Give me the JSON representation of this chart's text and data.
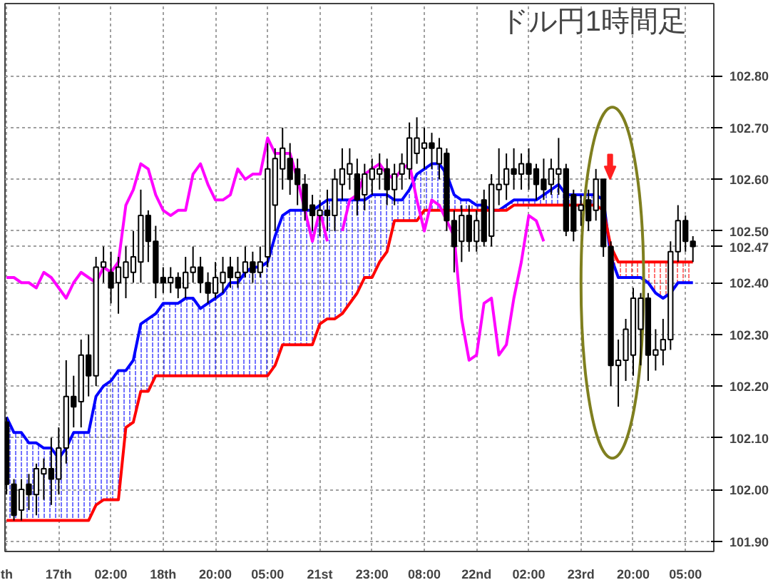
{
  "chart_data": {
    "type": "candlestick",
    "annotations": [
      "ドル円1時間足"
    ],
    "categories": [
      "th",
      null,
      null,
      null,
      null,
      null,
      null,
      "17th",
      null,
      null,
      null,
      null,
      null,
      null,
      "02:00",
      null,
      null,
      null,
      null,
      null,
      null,
      "18th",
      null,
      null,
      null,
      null,
      null,
      null,
      "20:00",
      null,
      null,
      null,
      null,
      null,
      null,
      "05:00",
      null,
      null,
      null,
      null,
      null,
      null,
      "21st",
      null,
      null,
      null,
      null,
      null,
      null,
      "23:00",
      null,
      null,
      null,
      null,
      null,
      null,
      "08:00",
      null,
      null,
      null,
      null,
      null,
      null,
      "22nd",
      null,
      null,
      null,
      null,
      null,
      null,
      "02:00",
      null,
      null,
      null,
      null,
      null,
      null,
      "23rd",
      null,
      null,
      null,
      null,
      null,
      null,
      "20:00",
      null,
      null,
      null,
      null,
      null,
      null,
      "05:00",
      null
    ],
    "color": "#000000",
    "ohlc": [
      [
        102.13,
        102.14,
        101.99,
        102.01
      ],
      [
        102.01,
        102.02,
        101.94,
        101.95
      ],
      [
        101.96,
        102.02,
        101.94,
        102.0
      ],
      [
        102.01,
        102.03,
        101.96,
        101.99
      ],
      [
        101.99,
        102.05,
        101.95,
        102.04
      ],
      [
        102.03,
        102.06,
        101.98,
        102.04
      ],
      [
        102.04,
        102.1,
        101.97,
        102.02
      ],
      [
        102.02,
        102.12,
        101.99,
        102.08
      ],
      [
        102.08,
        102.25,
        102.05,
        102.18
      ],
      [
        102.18,
        102.22,
        102.12,
        102.16
      ],
      [
        102.17,
        102.29,
        102.12,
        102.26
      ],
      [
        102.26,
        102.3,
        102.18,
        102.22
      ],
      [
        102.22,
        102.45,
        102.2,
        102.43
      ],
      [
        102.43,
        102.47,
        102.4,
        102.44
      ],
      [
        102.42,
        102.46,
        102.36,
        102.39
      ],
      [
        102.4,
        102.45,
        102.34,
        102.43
      ],
      [
        102.41,
        102.47,
        102.37,
        102.44
      ],
      [
        102.42,
        102.5,
        102.4,
        102.45
      ],
      [
        102.44,
        102.58,
        102.4,
        102.53
      ],
      [
        102.53,
        102.54,
        102.44,
        102.48
      ],
      [
        102.48,
        102.51,
        102.37,
        102.4
      ],
      [
        102.41,
        102.43,
        102.38,
        102.4
      ],
      [
        102.4,
        102.43,
        102.38,
        102.41
      ],
      [
        102.41,
        102.42,
        102.37,
        102.39
      ],
      [
        102.39,
        102.45,
        102.37,
        102.42
      ],
      [
        102.42,
        102.47,
        102.4,
        102.43
      ],
      [
        102.43,
        102.45,
        102.38,
        102.4
      ],
      [
        102.4,
        102.42,
        102.36,
        102.38
      ],
      [
        102.38,
        102.44,
        102.37,
        102.41
      ],
      [
        102.4,
        102.45,
        102.38,
        102.42
      ],
      [
        102.43,
        102.45,
        102.39,
        102.41
      ],
      [
        102.41,
        102.45,
        102.39,
        102.42
      ],
      [
        102.42,
        102.47,
        102.41,
        102.44
      ],
      [
        102.44,
        102.46,
        102.4,
        102.42
      ],
      [
        102.42,
        102.47,
        102.41,
        102.44
      ],
      [
        102.45,
        102.67,
        102.43,
        102.62
      ],
      [
        102.55,
        102.66,
        102.5,
        102.64
      ],
      [
        102.62,
        102.7,
        102.58,
        102.66
      ],
      [
        102.64,
        102.67,
        102.57,
        102.6
      ],
      [
        102.62,
        102.64,
        102.55,
        102.59
      ],
      [
        102.59,
        102.61,
        102.52,
        102.54
      ],
      [
        102.55,
        102.57,
        102.5,
        102.53
      ],
      [
        102.53,
        102.56,
        102.49,
        102.54
      ],
      [
        102.54,
        102.58,
        102.5,
        102.53
      ],
      [
        102.53,
        102.62,
        102.5,
        102.6
      ],
      [
        102.59,
        102.66,
        102.56,
        102.62
      ],
      [
        102.61,
        102.66,
        102.58,
        102.63
      ],
      [
        102.61,
        102.64,
        102.53,
        102.56
      ],
      [
        102.57,
        102.63,
        102.54,
        102.61
      ],
      [
        102.6,
        102.64,
        102.57,
        102.62
      ],
      [
        102.61,
        102.65,
        102.58,
        102.62
      ],
      [
        102.62,
        102.64,
        102.55,
        102.58
      ],
      [
        102.58,
        102.63,
        102.55,
        102.61
      ],
      [
        102.61,
        102.65,
        102.58,
        102.63
      ],
      [
        102.62,
        102.71,
        102.6,
        102.68
      ],
      [
        102.65,
        102.72,
        102.63,
        102.68
      ],
      [
        102.66,
        102.7,
        102.62,
        102.67
      ],
      [
        102.67,
        102.69,
        102.62,
        102.66
      ],
      [
        102.63,
        102.68,
        102.6,
        102.66
      ],
      [
        102.65,
        102.66,
        102.5,
        102.52
      ],
      [
        102.52,
        102.54,
        102.42,
        102.47
      ],
      [
        102.48,
        102.55,
        102.44,
        102.53
      ],
      [
        102.53,
        102.55,
        102.46,
        102.48
      ],
      [
        102.48,
        102.54,
        102.46,
        102.52
      ],
      [
        102.56,
        102.58,
        102.47,
        102.48
      ],
      [
        102.49,
        102.61,
        102.47,
        102.59
      ],
      [
        102.58,
        102.66,
        102.55,
        102.59
      ],
      [
        102.59,
        102.65,
        102.56,
        102.62
      ],
      [
        102.62,
        102.66,
        102.58,
        102.61
      ],
      [
        102.61,
        102.65,
        102.58,
        102.63
      ],
      [
        102.63,
        102.66,
        102.58,
        102.61
      ],
      [
        102.62,
        102.63,
        102.56,
        102.59
      ],
      [
        102.6,
        102.64,
        102.56,
        102.58
      ],
      [
        102.59,
        102.64,
        102.57,
        102.62
      ],
      [
        102.61,
        102.68,
        102.57,
        102.62
      ],
      [
        102.62,
        102.63,
        102.49,
        102.5
      ],
      [
        102.57,
        102.58,
        102.48,
        102.5
      ],
      [
        102.54,
        102.57,
        102.51,
        102.55
      ],
      [
        102.56,
        102.58,
        102.5,
        102.52
      ],
      [
        102.54,
        102.62,
        102.52,
        102.6
      ],
      [
        102.6,
        102.6,
        102.45,
        102.47
      ],
      [
        102.47,
        102.48,
        102.2,
        102.24
      ],
      [
        102.24,
        102.29,
        102.16,
        102.25
      ],
      [
        102.25,
        102.33,
        102.21,
        102.31
      ],
      [
        102.26,
        102.39,
        102.22,
        102.37
      ],
      [
        102.31,
        102.38,
        102.24,
        102.37
      ],
      [
        102.37,
        102.38,
        102.21,
        102.26
      ],
      [
        102.26,
        102.31,
        102.23,
        102.27
      ],
      [
        102.27,
        102.33,
        102.24,
        102.29
      ],
      [
        102.29,
        102.48,
        102.27,
        102.46
      ],
      [
        102.46,
        102.55,
        102.44,
        102.52
      ],
      [
        102.52,
        102.53,
        102.46,
        102.48
      ],
      [
        102.48,
        102.49,
        102.44,
        102.47
      ]
    ],
    "series": [
      {
        "type": "line",
        "color": "#0000ff",
        "values": [
          102.14,
          102.11,
          102.11,
          102.09,
          102.09,
          102.08,
          102.08,
          102.06,
          102.08,
          102.11,
          102.11,
          102.11,
          102.18,
          102.2,
          102.21,
          102.23,
          102.23,
          102.25,
          102.32,
          102.33,
          102.34,
          102.36,
          102.36,
          102.36,
          102.37,
          102.37,
          102.35,
          102.36,
          102.37,
          102.38,
          102.4,
          102.4,
          102.42,
          102.43,
          102.43,
          102.44,
          102.49,
          102.53,
          102.54,
          102.54,
          102.54,
          102.54,
          102.55,
          102.56,
          102.56,
          102.56,
          102.56,
          102.56,
          102.56,
          102.57,
          102.57,
          102.57,
          102.56,
          102.56,
          102.58,
          102.61,
          102.62,
          102.63,
          102.63,
          102.61,
          102.57,
          102.56,
          102.56,
          102.55,
          102.55,
          102.54,
          102.54,
          102.55,
          102.56,
          102.56,
          102.56,
          102.56,
          102.57,
          102.58,
          102.59,
          102.57,
          102.57,
          102.57,
          102.57,
          102.57,
          102.56,
          102.45,
          102.41,
          102.41,
          102.41,
          102.41,
          102.4,
          102.38,
          102.37,
          102.38,
          102.4,
          102.4,
          102.4
        ],
        "lower": [
          101.94,
          101.94,
          101.94,
          101.94,
          101.94,
          101.94,
          101.94,
          101.94,
          101.94,
          101.94,
          101.94,
          101.94,
          101.97,
          101.98,
          101.98,
          101.98,
          102.12,
          102.13,
          102.19,
          102.19,
          102.22,
          102.22,
          102.22,
          102.22,
          102.22,
          102.22,
          102.22,
          102.22,
          102.22,
          102.22,
          102.22,
          102.22,
          102.22,
          102.22,
          102.22,
          102.22,
          102.24,
          102.28,
          102.28,
          102.28,
          102.28,
          102.28,
          102.32,
          102.33,
          102.33,
          102.34,
          102.36,
          102.38,
          102.41,
          102.41,
          102.44,
          102.46,
          102.52,
          102.52,
          102.52,
          102.52,
          102.54,
          102.54,
          102.54,
          102.54,
          102.54,
          102.54,
          102.54,
          102.54,
          102.54,
          102.54,
          102.54,
          102.54,
          102.55,
          102.55,
          102.55,
          102.55,
          102.55,
          102.55,
          102.55,
          102.55,
          102.55,
          102.55,
          102.55,
          102.55,
          102.54,
          null,
          null,
          null,
          null,
          null,
          null,
          null,
          null,
          null,
          null,
          null,
          null
        ],
        "upper": [
          102.14,
          102.11,
          102.11,
          102.09,
          102.09,
          102.08,
          102.08,
          102.06,
          102.08,
          102.11,
          102.11,
          102.11,
          102.18,
          102.2,
          102.21,
          102.23,
          102.23,
          102.25,
          102.32,
          102.33,
          102.34,
          102.36,
          102.36,
          102.36,
          102.37,
          102.37,
          102.35,
          102.36,
          102.37,
          102.38,
          102.4,
          102.4,
          102.42,
          102.43,
          102.43,
          102.44,
          102.49,
          102.53,
          102.54,
          102.54,
          102.54,
          102.54,
          102.55,
          102.56,
          102.56,
          102.56,
          102.56,
          102.56,
          102.56,
          102.57,
          102.57,
          102.57,
          102.56,
          102.56,
          102.58,
          102.61,
          102.62,
          102.63,
          102.63,
          102.61,
          102.57,
          102.56,
          102.56,
          102.55,
          102.55,
          102.54,
          102.54,
          102.55,
          102.56,
          102.56,
          102.56,
          102.56,
          102.57,
          102.58,
          102.59,
          102.57,
          102.57,
          102.57,
          102.57,
          102.57,
          102.56,
          null,
          null,
          null,
          null,
          null,
          null,
          null,
          null,
          null,
          null,
          null,
          null
        ]
      },
      {
        "type": "line",
        "color": "#ff0000",
        "values": [
          101.94,
          101.94,
          101.94,
          101.94,
          101.94,
          101.94,
          101.94,
          101.94,
          101.94,
          101.94,
          101.94,
          101.94,
          101.97,
          101.98,
          101.98,
          101.98,
          102.12,
          102.13,
          102.19,
          102.19,
          102.22,
          102.22,
          102.22,
          102.22,
          102.22,
          102.22,
          102.22,
          102.22,
          102.22,
          102.22,
          102.22,
          102.22,
          102.22,
          102.22,
          102.22,
          102.22,
          102.24,
          102.28,
          102.28,
          102.28,
          102.28,
          102.28,
          102.32,
          102.33,
          102.33,
          102.34,
          102.36,
          102.38,
          102.41,
          102.41,
          102.44,
          102.46,
          102.52,
          102.52,
          102.52,
          102.52,
          102.54,
          102.54,
          102.54,
          102.54,
          102.54,
          102.54,
          102.54,
          102.54,
          102.54,
          102.54,
          102.54,
          102.54,
          102.55,
          102.55,
          102.55,
          102.55,
          102.55,
          102.55,
          102.55,
          102.55,
          102.55,
          102.55,
          102.55,
          102.55,
          102.54,
          102.47,
          102.44,
          102.44,
          102.44,
          102.44,
          102.44,
          102.44,
          102.44,
          102.44,
          102.44,
          102.44,
          102.44
        ],
        "lower": [
          null,
          null,
          null,
          null,
          null,
          null,
          null,
          null,
          null,
          null,
          null,
          null,
          null,
          null,
          null,
          null,
          null,
          null,
          null,
          null,
          null,
          null,
          null,
          null,
          null,
          null,
          null,
          null,
          null,
          null,
          null,
          null,
          null,
          null,
          null,
          null,
          null,
          null,
          null,
          null,
          null,
          null,
          null,
          null,
          null,
          null,
          null,
          null,
          null,
          null,
          null,
          null,
          null,
          null,
          null,
          null,
          null,
          null,
          null,
          null,
          null,
          null,
          null,
          null,
          null,
          null,
          null,
          null,
          null,
          null,
          null,
          null,
          null,
          null,
          null,
          null,
          null,
          null,
          null,
          null,
          null,
          102.45,
          102.41,
          102.41,
          102.41,
          102.41,
          102.4,
          102.38,
          102.37,
          102.38,
          102.4,
          102.4,
          102.4
        ],
        "upper": [
          null,
          null,
          null,
          null,
          null,
          null,
          null,
          null,
          null,
          null,
          null,
          null,
          null,
          null,
          null,
          null,
          null,
          null,
          null,
          null,
          null,
          null,
          null,
          null,
          null,
          null,
          null,
          null,
          null,
          null,
          null,
          null,
          null,
          null,
          null,
          null,
          null,
          null,
          null,
          null,
          null,
          null,
          null,
          null,
          null,
          null,
          null,
          null,
          null,
          null,
          null,
          null,
          null,
          null,
          null,
          null,
          null,
          null,
          null,
          null,
          null,
          null,
          null,
          null,
          null,
          null,
          null,
          null,
          null,
          null,
          null,
          null,
          null,
          null,
          null,
          null,
          null,
          null,
          null,
          null,
          null,
          102.47,
          102.44,
          102.44,
          102.44,
          102.44,
          102.44,
          102.44,
          102.44,
          102.44,
          102.44,
          102.44,
          102.44
        ]
      },
      {
        "type": "line",
        "color": "#ff00ff",
        "values": [
          102.41,
          102.41,
          102.4,
          102.4,
          102.39,
          102.42,
          102.41,
          102.39,
          102.37,
          102.4,
          102.42,
          102.41,
          102.4,
          102.43,
          102.42,
          102.44,
          102.55,
          102.58,
          102.63,
          102.62,
          102.57,
          102.54,
          102.53,
          102.54,
          102.54,
          102.61,
          102.63,
          102.59,
          102.56,
          102.56,
          102.57,
          102.62,
          102.6,
          102.61,
          102.61,
          102.68,
          102.65,
          102.65,
          102.65,
          102.6,
          102.54,
          102.48,
          102.54,
          102.48,
          null,
          102.5,
          102.56,
          102.57,
          102.61,
          102.62,
          102.63,
          102.61,
          102.6,
          102.62,
          102.63,
          102.56,
          102.5,
          102.56,
          102.55,
          102.52,
          102.49,
          102.33,
          102.25,
          102.26,
          102.36,
          102.37,
          102.26,
          102.28,
          102.37,
          102.44,
          102.53,
          102.52,
          102.48,
          null,
          null,
          null,
          null,
          null,
          null,
          null,
          null,
          null,
          null,
          null,
          null,
          null,
          null,
          null,
          null,
          null,
          null,
          null,
          null
        ]
      }
    ],
    "ylim": [
      101.88,
      102.94
    ],
    "yticks": [
      {
        "value": 101.9,
        "label": "101.90"
      },
      {
        "value": 102.0,
        "label": "102.00"
      },
      {
        "value": 102.1,
        "label": "102.10"
      },
      {
        "value": 102.2,
        "label": "102.20"
      },
      {
        "value": 102.3,
        "label": "102.30"
      },
      {
        "value": 102.4,
        "label": "102.40"
      },
      {
        "value": 102.47,
        "label": "102.47"
      },
      {
        "value": 102.5,
        "label": "102.50"
      },
      {
        "value": 102.6,
        "label": "102.60"
      },
      {
        "value": 102.7,
        "label": "102.70"
      },
      {
        "value": 102.8,
        "label": "102.80"
      }
    ],
    "grid": true,
    "line_style": "solid",
    "marker": "none"
  }
}
